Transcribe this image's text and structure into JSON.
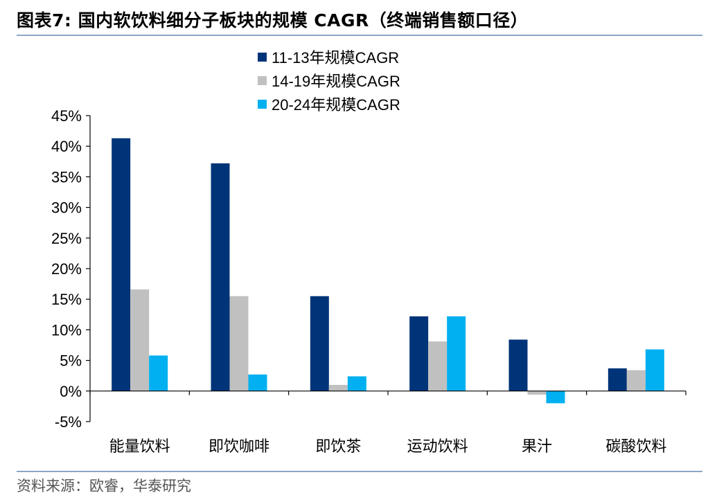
{
  "figure": {
    "title": "图表7:   国内软饮料细分子板块的规模 CAGR（终端销售额口径）",
    "source": "资料来源：欧睿，华泰研究"
  },
  "chart_data": {
    "type": "bar",
    "categories": [
      "能量饮料",
      "即饮咖啡",
      "即饮茶",
      "运动饮料",
      "果汁",
      "碳酸饮料"
    ],
    "series": [
      {
        "name": "11-13年规模CAGR",
        "color": "#003478",
        "values": [
          41.3,
          37.2,
          15.5,
          12.2,
          8.4,
          3.7
        ]
      },
      {
        "name": "14-19年规模CAGR",
        "color": "#c0c0c0",
        "values": [
          16.6,
          15.5,
          1.0,
          8.1,
          -0.6,
          3.4
        ]
      },
      {
        "name": "20-24年规模CAGR",
        "color": "#00b0f0",
        "values": [
          5.8,
          2.7,
          2.4,
          12.2,
          -2.0,
          6.8
        ]
      }
    ],
    "yticks": [
      "-5%",
      "0%",
      "5%",
      "10%",
      "15%",
      "20%",
      "25%",
      "30%",
      "35%",
      "40%",
      "45%"
    ],
    "ylim": [
      -5,
      45
    ],
    "legend_position": "top-center",
    "grid": false
  }
}
